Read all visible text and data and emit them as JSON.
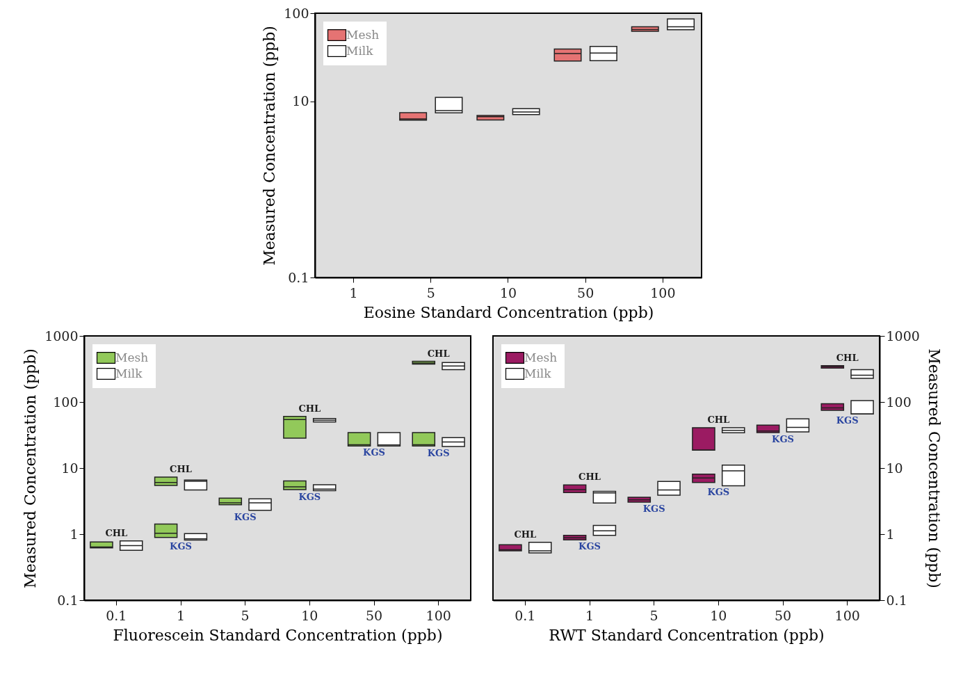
{
  "chart_data": [
    {
      "type": "box",
      "xlabel": "Eosine Standard Concentration (ppb)",
      "ylabel": "Measured Concentration (ppb)",
      "categories": [
        "1",
        "5",
        "10",
        "50",
        "100"
      ],
      "ylim": [
        0.1,
        100
      ],
      "yticks": [
        0.1,
        10,
        100
      ],
      "log": true,
      "legend": "top left",
      "grid": false,
      "series": [
        {
          "name": "Mesh",
          "color": "#e57373",
          "boxes": [
            null,
            {
              "low": 6.12,
              "q1": 6.12,
              "median": 6.32,
              "q3": 7.43,
              "high": 7.43
            },
            {
              "low": 6.14,
              "q1": 6.14,
              "median": 6.7,
              "q3": 6.92,
              "high": 6.92
            },
            {
              "low": 28.6,
              "q1": 28.6,
              "median": 34.9,
              "q3": 39.2,
              "high": 39.2
            },
            {
              "low": 62.2,
              "q1": 62.2,
              "median": 65.2,
              "q3": 70.2,
              "high": 70.2
            }
          ]
        },
        {
          "name": "Milk",
          "color": "#ffffff",
          "boxes": [
            null,
            {
              "low": 7.4,
              "q1": 7.4,
              "median": 7.83,
              "q3": 11.1,
              "high": 11.1
            },
            {
              "low": 7.06,
              "q1": 7.06,
              "median": 7.57,
              "q3": 8.25,
              "high": 8.25
            },
            {
              "low": 28.9,
              "q1": 28.9,
              "median": 35.3,
              "q3": 41.9,
              "high": 41.9
            },
            {
              "low": 64.9,
              "q1": 64.9,
              "median": 70.3,
              "q3": 86.1,
              "high": 86.1
            }
          ]
        }
      ]
    },
    {
      "type": "box",
      "xlabel": "Fluorescein Standard Concentration (ppb)",
      "ylabel": "Measured Concentration (ppb)",
      "categories": [
        "0.1",
        "1",
        "5",
        "10",
        "50",
        "100"
      ],
      "ylim": [
        0.1,
        1000
      ],
      "yticks": [
        0.1,
        1,
        10,
        100,
        1000
      ],
      "log": true,
      "legend": "top left",
      "grid": false,
      "series": [
        {
          "name": "Mesh",
          "color": "#92c95a",
          "value_labels": [
            "CHL",
            "CHL",
            null,
            "CHL",
            null,
            "CHL"
          ],
          "boxes": [
            {
              "low": 0.62,
              "q1": 0.62,
              "median": 0.64,
              "q3": 0.76,
              "high": 0.76
            },
            {
              "low": 5.44,
              "q1": 5.44,
              "median": 6.03,
              "q3": 7.31,
              "high": 7.31
            },
            null,
            {
              "low": 28.4,
              "q1": 28.4,
              "median": 54.1,
              "q3": 60.4,
              "high": 60.4
            },
            null,
            {
              "low": 374,
              "q1": 374,
              "median": 388,
              "q3": 412,
              "high": 412
            }
          ]
        },
        {
          "name": "Milk",
          "color": "#ffffff",
          "boxes": [
            {
              "low": 0.57,
              "q1": 0.57,
              "median": 0.67,
              "q3": 0.79,
              "high": 0.79
            },
            {
              "low": 4.66,
              "q1": 4.66,
              "median": 6.31,
              "q3": 6.59,
              "high": 6.59
            },
            null,
            {
              "low": 49.8,
              "q1": 49.8,
              "median": 52.9,
              "q3": 56.1,
              "high": 56.1
            },
            null,
            {
              "low": 308,
              "q1": 308,
              "median": 350,
              "q3": 396,
              "high": 396
            }
          ]
        },
        {
          "name": "Mesh",
          "color": "#92c95a",
          "value_labels": [
            null,
            "KGS",
            "KGS",
            "KGS",
            "KGS",
            "KGS"
          ],
          "boxes": [
            null,
            {
              "low": 0.89,
              "q1": 0.89,
              "median": 1.03,
              "q3": 1.42,
              "high": 1.42
            },
            {
              "low": 2.79,
              "q1": 2.79,
              "median": 2.98,
              "q3": 3.51,
              "high": 3.51
            },
            {
              "low": 4.72,
              "q1": 4.72,
              "median": 5.2,
              "q3": 6.4,
              "high": 6.4
            },
            {
              "low": 21.6,
              "q1": 21.6,
              "median": 22.5,
              "q3": 34.4,
              "high": 34.4
            },
            {
              "low": 21.6,
              "q1": 21.6,
              "median": 22.5,
              "q3": 34.4,
              "high": 34.4
            }
          ]
        },
        {
          "name": "Milk",
          "color": "#ffffff",
          "boxes": [
            null,
            {
              "low": 0.815,
              "q1": 0.815,
              "median": 0.85,
              "q3": 1.02,
              "high": 1.02
            },
            {
              "low": 2.3,
              "q1": 2.3,
              "median": 2.98,
              "q3": 3.43,
              "high": 3.43
            },
            {
              "low": 4.55,
              "q1": 4.55,
              "median": 4.8,
              "q3": 5.6,
              "high": 5.6
            },
            {
              "low": 21.6,
              "q1": 21.6,
              "median": 22.4,
              "q3": 34.4,
              "high": 34.4
            },
            {
              "low": 21.2,
              "q1": 21.2,
              "median": 24.8,
              "q3": 28.8,
              "high": 28.8
            }
          ]
        }
      ]
    },
    {
      "type": "box",
      "xlabel": "RWT Standard Concentration (ppb)",
      "y2label": "Measured Concentration (ppb)",
      "categories": [
        "0.1",
        "1",
        "5",
        "10",
        "50",
        "100"
      ],
      "y2lim": [
        0.1,
        1000
      ],
      "y2ticks": [
        0.1,
        1,
        10,
        100,
        1000
      ],
      "log": "y2",
      "legend": "top left",
      "grid": false,
      "series": [
        {
          "name": "Mesh",
          "color": "#9b1b62",
          "axis": "y2",
          "value_labels": [
            "CHL",
            "CHL",
            null,
            "CHL",
            null,
            "CHL"
          ],
          "boxes": [
            {
              "low": 0.56,
              "q1": 0.56,
              "median": 0.58,
              "q3": 0.69,
              "high": 0.69
            },
            {
              "low": 4.26,
              "q1": 4.26,
              "median": 4.72,
              "q3": 5.56,
              "high": 5.56
            },
            null,
            {
              "low": 18.7,
              "q1": 18.7,
              "median": 18.7,
              "q3": 40.8,
              "high": 40.8
            },
            null,
            {
              "low": 325,
              "q1": 325,
              "median": 342,
              "q3": 355,
              "high": 355
            }
          ]
        },
        {
          "name": "Milk",
          "color": "#ffffff",
          "axis": "y2",
          "boxes": [
            {
              "low": 0.52,
              "q1": 0.52,
              "median": 0.56,
              "q3": 0.75,
              "high": 0.75
            },
            {
              "low": 2.96,
              "q1": 2.96,
              "median": 4.2,
              "q3": 4.45,
              "high": 4.45
            },
            null,
            {
              "low": 34.2,
              "q1": 34.2,
              "median": 37.3,
              "q3": 40.8,
              "high": 40.8
            },
            null,
            {
              "low": 228,
              "q1": 228,
              "median": 254,
              "q3": 308,
              "high": 308
            }
          ]
        },
        {
          "name": "Mesh",
          "color": "#9b1b62",
          "axis": "y2",
          "value_labels": [
            null,
            "KGS",
            "KGS",
            "KGS",
            "KGS",
            "KGS"
          ],
          "boxes": [
            null,
            {
              "low": 0.82,
              "q1": 0.82,
              "median": 0.88,
              "q3": 0.96,
              "high": 0.96
            },
            {
              "low": 3.05,
              "q1": 3.05,
              "median": 3.29,
              "q3": 3.62,
              "high": 3.62
            },
            {
              "low": 6.03,
              "q1": 6.03,
              "median": 7.1,
              "q3": 8.11,
              "high": 8.11
            },
            {
              "low": 34.4,
              "q1": 34.4,
              "median": 36.3,
              "q3": 44.6,
              "high": 44.6
            },
            {
              "low": 74.9,
              "q1": 74.9,
              "median": 81.3,
              "q3": 94.2,
              "high": 94.2
            }
          ]
        },
        {
          "name": "Milk",
          "color": "#ffffff",
          "axis": "y2",
          "boxes": [
            null,
            {
              "low": 0.96,
              "q1": 0.96,
              "median": 1.12,
              "q3": 1.35,
              "high": 1.35
            },
            {
              "low": 3.89,
              "q1": 3.89,
              "median": 4.66,
              "q3": 6.26,
              "high": 6.26
            },
            {
              "low": 5.4,
              "q1": 5.4,
              "median": 9.07,
              "q3": 11.1,
              "high": 11.1
            },
            {
              "low": 35.2,
              "q1": 35.2,
              "median": 41.4,
              "q3": 55.7,
              "high": 55.7
            },
            {
              "low": 66,
              "q1": 66,
              "median": 66,
              "q3": 105,
              "high": 105
            }
          ]
        }
      ]
    }
  ]
}
